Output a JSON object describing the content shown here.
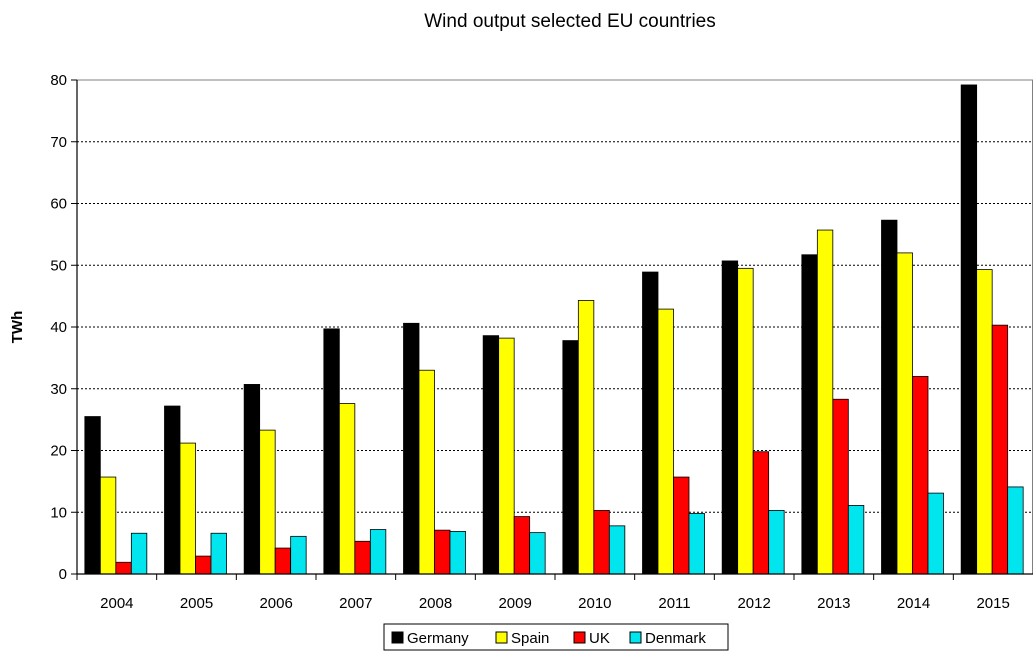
{
  "chart_data": {
    "type": "bar",
    "title": "Wind output selected EU countries",
    "xlabel": "",
    "ylabel": "TWh",
    "ylim": [
      0,
      80
    ],
    "yticks": [
      0,
      10,
      20,
      30,
      40,
      50,
      60,
      70,
      80
    ],
    "grid": true,
    "legend_position": "bottom",
    "categories": [
      "2004",
      "2005",
      "2006",
      "2007",
      "2008",
      "2009",
      "2010",
      "2011",
      "2012",
      "2013",
      "2014",
      "2015"
    ],
    "series": [
      {
        "name": "Germany",
        "color": "#000000",
        "values": [
          25.5,
          27.2,
          30.7,
          39.7,
          40.6,
          38.6,
          37.8,
          48.9,
          50.7,
          51.7,
          57.3,
          79.2
        ]
      },
      {
        "name": "Spain",
        "color": "#ffff00",
        "values": [
          15.7,
          21.2,
          23.3,
          27.6,
          33.0,
          38.2,
          44.3,
          42.9,
          49.5,
          55.7,
          52.0,
          49.3
        ]
      },
      {
        "name": "UK",
        "color": "#ff0000",
        "values": [
          1.9,
          2.9,
          4.2,
          5.3,
          7.1,
          9.3,
          10.3,
          15.7,
          19.8,
          28.3,
          32.0,
          40.3
        ]
      },
      {
        "name": "Denmark",
        "color": "#00e5ee",
        "values": [
          6.6,
          6.6,
          6.1,
          7.2,
          6.9,
          6.7,
          7.8,
          9.8,
          10.3,
          11.1,
          13.1,
          14.1
        ]
      }
    ]
  }
}
